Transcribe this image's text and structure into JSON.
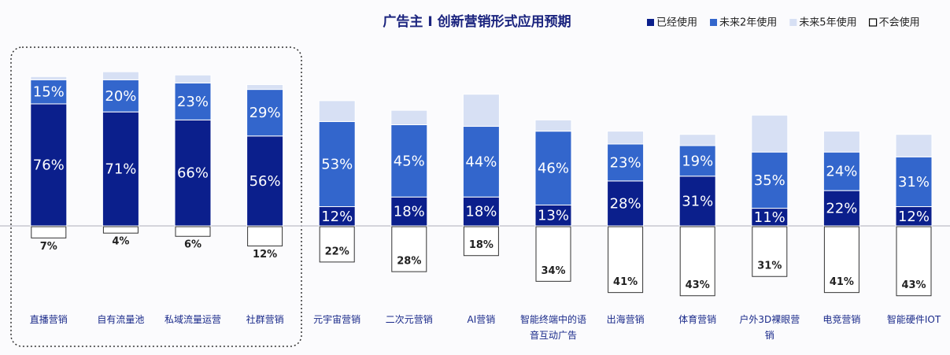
{
  "chart_data": {
    "type": "diverging-stacked-bar",
    "title": "广告主 I 创新营销形式应用预期",
    "categories": [
      "直播营销",
      "自有流量池",
      "私域流量运营",
      "社群营销",
      "元宇宙营销",
      "二次元营销",
      "AI营销",
      "智能终端中的语音互动广告",
      "出海营销",
      "体育营销",
      "户外3D裸眼营销",
      "电竞营销",
      "智能硬件IOT"
    ],
    "series": [
      {
        "name": "已经使用",
        "color": "#0b1f8c",
        "values": [
          76,
          71,
          66,
          56,
          12,
          18,
          18,
          13,
          28,
          31,
          11,
          22,
          12
        ],
        "value_labels": [
          "76%",
          "71%",
          "66%",
          "56%",
          "12%",
          "18%",
          "18%",
          "13%",
          "28%",
          "31%",
          "11%",
          "22%",
          "12%"
        ]
      },
      {
        "name": "未来2年使用",
        "color": "#3366cc",
        "values": [
          15,
          20,
          23,
          29,
          53,
          45,
          44,
          46,
          23,
          19,
          35,
          24,
          31
        ],
        "value_labels": [
          "15%",
          "20%",
          "23%",
          "29%",
          "53%",
          "45%",
          "44%",
          "46%",
          "23%",
          "19%",
          "35%",
          "24%",
          "31%"
        ]
      },
      {
        "name": "未来5年使用",
        "color": "#d7e0f4",
        "values": [
          2,
          5,
          5,
          3,
          13,
          9,
          20,
          7,
          8,
          7,
          23,
          13,
          14
        ]
      },
      {
        "name": "不会使用",
        "color": "#ffffff",
        "values": [
          7,
          4,
          6,
          12,
          22,
          28,
          18,
          34,
          41,
          43,
          31,
          41,
          43
        ],
        "value_labels": [
          "7%",
          "4%",
          "6%",
          "12%",
          "22%",
          "28%",
          "18%",
          "34%",
          "41%",
          "43%",
          "31%",
          "41%",
          "43%"
        ]
      }
    ],
    "ylim": [
      -50,
      100
    ]
  }
}
